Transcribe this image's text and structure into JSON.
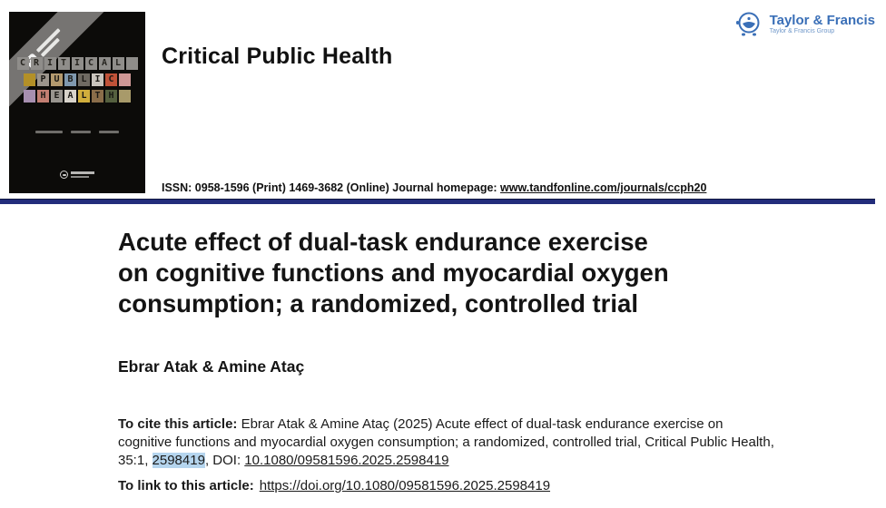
{
  "header": {
    "journal_title": "Critical Public Health",
    "issn_label": "ISSN: 0958-1596 (Print) 1469-3682 (Online) Journal homepage: ",
    "homepage_link": "www.tandfonline.com/journals/ccph20",
    "logo": {
      "name": "Taylor & Francis",
      "group": "Taylor & Francis Group",
      "color": "#3a6fb7"
    }
  },
  "cover": {
    "rows": [
      {
        "tiles": [
          {
            "ch": "C",
            "bg": "#8f8d8a",
            "fg": "#26241f"
          },
          {
            "ch": "R",
            "bg": "#8f8d8a",
            "fg": "#26241f"
          },
          {
            "ch": "I",
            "bg": "#8f8d8a",
            "fg": "#26241f"
          },
          {
            "ch": "T",
            "bg": "#8f8d8a",
            "fg": "#26241f"
          },
          {
            "ch": "I",
            "bg": "#8f8d8a",
            "fg": "#26241f"
          },
          {
            "ch": "C",
            "bg": "#8f8d8a",
            "fg": "#26241f"
          },
          {
            "ch": "A",
            "bg": "#8f8d8a",
            "fg": "#26241f"
          },
          {
            "ch": "L",
            "bg": "#8f8d8a",
            "fg": "#26241f"
          },
          {
            "ch": "",
            "bg": "#8f8d8a",
            "fg": "#26241f"
          }
        ]
      },
      {
        "tiles": [
          {
            "ch": "",
            "bg": "#b39027",
            "fg": "#1c1a16"
          },
          {
            "ch": "P",
            "bg": "#9c958c",
            "fg": "#1c1a16"
          },
          {
            "ch": "U",
            "bg": "#b49a6e",
            "fg": "#1c1a16"
          },
          {
            "ch": "B",
            "bg": "#7f98ae",
            "fg": "#1c1a16"
          },
          {
            "ch": "L",
            "bg": "#6f6a62",
            "fg": "#1c1a16"
          },
          {
            "ch": "I",
            "bg": "#c9c4bc",
            "fg": "#1c1a16"
          },
          {
            "ch": "C",
            "bg": "#c05238",
            "fg": "#1c1a16"
          },
          {
            "ch": "",
            "bg": "#cf9795",
            "fg": "#1c1a16"
          }
        ]
      },
      {
        "tiles": [
          {
            "ch": "",
            "bg": "#a78fb0",
            "fg": "#1c1a16"
          },
          {
            "ch": "H",
            "bg": "#c27e72",
            "fg": "#1c1a16"
          },
          {
            "ch": "E",
            "bg": "#98948e",
            "fg": "#1c1a16"
          },
          {
            "ch": "A",
            "bg": "#d8d3ca",
            "fg": "#1c1a16"
          },
          {
            "ch": "L",
            "bg": "#d1ae3c",
            "fg": "#1c1a16"
          },
          {
            "ch": "T",
            "bg": "#8a6d4a",
            "fg": "#1c1a16"
          },
          {
            "ch": "H",
            "bg": "#55603f",
            "fg": "#191914"
          },
          {
            "ch": "",
            "bg": "#a89a6a",
            "fg": "#1c1a16"
          }
        ]
      }
    ]
  },
  "article": {
    "title_lines": [
      "Acute effect of dual-task endurance exercise",
      "on cognitive functions and myocardial oxygen",
      "consumption; a randomized, controlled trial"
    ],
    "authors": "Ebrar Atak & Amine Ataç",
    "cite": {
      "label": "To cite this article:",
      "text_before": " Ebrar Atak & Amine Ataç (2025) Acute effect of dual-task endurance exercise on cognitive functions and myocardial oxygen consumption; a randomized, controlled trial, Critical Public Health, 35:1, ",
      "highlighted": "2598419",
      "text_mid": ", DOI: ",
      "doi_link": "10.1080/09581596.2025.2598419"
    },
    "link_line": {
      "label": "To link to this article:",
      "url": "https://doi.org/10.1080/09581596.2025.2598419"
    }
  },
  "colors": {
    "rule_navy": "#232d7b",
    "highlight_blue": "#b5d5ee",
    "logo_blue": "#3a6fb7",
    "ribbon_gray": "#767472",
    "cover_black": "#0c0b09"
  }
}
